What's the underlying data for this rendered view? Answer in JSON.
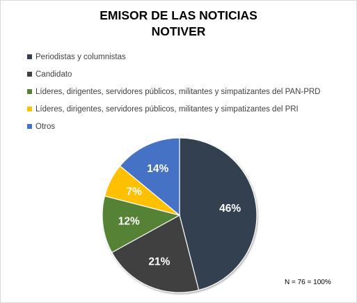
{
  "chart_data": {
    "type": "pie",
    "title_lines": [
      "EMISOR DE LAS NOTICIAS",
      "NOTIVER"
    ],
    "slices": [
      {
        "label": "Periodistas y columnistas",
        "value": 46,
        "value_label": "46%",
        "color": "#333f50",
        "label_color": "#ffffff"
      },
      {
        "label": "Candidato",
        "value": 21,
        "value_label": "21%",
        "color": "#404040",
        "label_color": "#ffffff"
      },
      {
        "label": "Líderes, dirigentes, servidores públicos, militantes y simpatizantes del PAN-PRD",
        "value": 12,
        "value_label": "12%",
        "color": "#548235",
        "label_color": "#ffffff"
      },
      {
        "label": "Líderes, dirigentes, servidores públicos, militantes y simpatizantes del PRI",
        "value": 7,
        "value_label": "7%",
        "color": "#ffc000",
        "label_color": "#ffffff"
      },
      {
        "label": "Otros",
        "value": 14,
        "value_label": "14%",
        "color": "#4472c4",
        "label_color": "#ffffff"
      }
    ],
    "legend_position": "top-left",
    "annotation": "N = 76 = 100%"
  }
}
